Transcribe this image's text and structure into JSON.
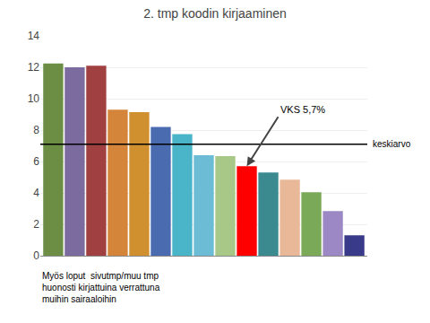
{
  "chart_data": {
    "type": "bar",
    "title": "2. tmp koodin kirjaaminen",
    "categories": [
      null,
      null,
      null,
      null,
      null,
      null,
      null,
      null,
      null,
      null,
      null,
      null,
      null,
      null,
      null
    ],
    "values": [
      12.25,
      12.0,
      12.1,
      9.3,
      9.15,
      8.2,
      7.75,
      6.4,
      6.35,
      5.7,
      5.3,
      4.85,
      4.05,
      2.85,
      1.3
    ],
    "colors": [
      "#6b8e44",
      "#7b6b9e",
      "#a04040",
      "#d4853a",
      "#d09030",
      "#4a6bb0",
      "#4ab5c8",
      "#6bbcd4",
      "#a8c888",
      "#ff0000",
      "#3a8a90",
      "#e8b898",
      "#7aaa58",
      "#9b88c4",
      "#3a3a8a"
    ],
    "ylim": [
      0,
      14
    ],
    "yticks": [
      0,
      2,
      4,
      6,
      8,
      10,
      12,
      14
    ],
    "grid": true,
    "tick_labels": "y",
    "reference_lines": [
      {
        "y": 7.1,
        "label": "keskiarvo"
      }
    ],
    "annotations": [
      {
        "text": "VKS 5,7%",
        "x": 9,
        "y": 5.7
      }
    ],
    "footer": "Myös loput  sivutmp/muu tmp\nhuonosti kirjattuina verrattuna\nmuihin sairaaloihin"
  }
}
